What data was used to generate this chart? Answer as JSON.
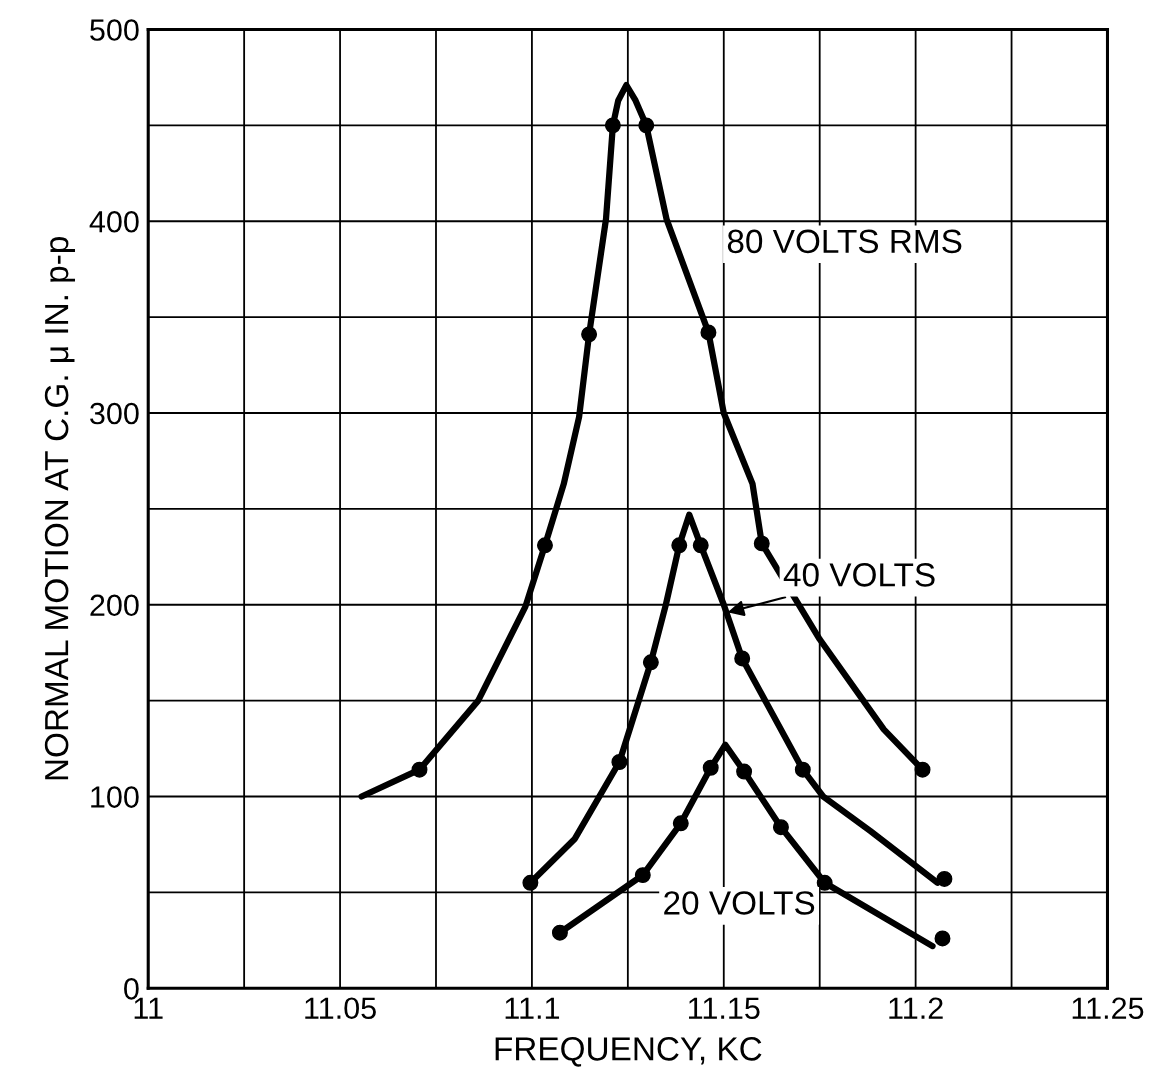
{
  "chart_data": {
    "type": "line",
    "xlabel": "FREQUENCY, KC",
    "ylabel": "NORMAL MOTION AT C.G. μ IN. p-p",
    "xlim": [
      11,
      11.25
    ],
    "ylim": [
      0,
      500
    ],
    "xticks": [
      11,
      {
        "value": 11.025,
        "label": null
      },
      11.05,
      {
        "value": 11.075,
        "label": null
      },
      11.1,
      {
        "value": 11.125,
        "label": null
      },
      11.15,
      {
        "value": 11.175,
        "label": null
      },
      11.2,
      {
        "value": 11.225,
        "label": null
      },
      11.25
    ],
    "yticks": [
      0,
      {
        "value": 50,
        "label": null
      },
      100,
      {
        "value": 150,
        "label": null
      },
      200,
      {
        "value": 250,
        "label": null
      },
      300,
      {
        "value": 350,
        "label": null
      },
      400,
      {
        "value": 450,
        "label": null
      },
      500
    ],
    "grid": true,
    "line_style": "solid",
    "series": [
      {
        "color": "#000000",
        "x": [
          11.0556,
          11.0707,
          11.086,
          11.0983,
          11.1034,
          11.1083,
          11.1123,
          11.1149,
          11.1193,
          11.1211,
          11.1225,
          11.1246,
          11.127,
          11.1298,
          11.1351,
          11.146,
          11.15,
          11.1575,
          11.1599,
          11.175,
          11.1917,
          11.2018
        ],
        "values": [
          100,
          114,
          150,
          199,
          231,
          263,
          298,
          341,
          401,
          450,
          463,
          471,
          463,
          450,
          401,
          342,
          300,
          263,
          232,
          182,
          135,
          114
        ]
      },
      {
        "type": "scatter",
        "color": "#000000",
        "marker": "circle",
        "x": [
          11.0707,
          11.1034,
          11.1149,
          11.1211,
          11.1298,
          11.146,
          11.1599,
          11.2018
        ],
        "values": [
          114,
          231,
          341,
          450,
          450,
          342,
          232,
          114
        ]
      },
      {
        "color": "#000000",
        "x": [
          11.0996,
          11.1112,
          11.1228,
          11.131,
          11.1349,
          11.1384,
          11.141,
          11.144,
          11.15,
          11.1548,
          11.1706,
          11.1759,
          11.1882,
          11.2057
        ],
        "values": [
          55,
          78,
          118,
          170,
          200,
          231,
          247,
          231,
          200,
          172,
          114,
          100,
          82,
          55
        ]
      },
      {
        "type": "scatter",
        "color": "#000000",
        "marker": "circle",
        "x": [
          11.0996,
          11.1228,
          11.131,
          11.1384,
          11.144,
          11.1548,
          11.1706,
          11.2075
        ],
        "values": [
          55,
          118,
          170,
          231,
          231,
          172,
          114,
          57
        ]
      },
      {
        "color": "#000000",
        "x": [
          11.1073,
          11.1289,
          11.1388,
          11.1466,
          11.1504,
          11.1553,
          11.1649,
          11.1763,
          11.2044
        ],
        "values": [
          29,
          59,
          86,
          115,
          127,
          113,
          84,
          55,
          22
        ]
      },
      {
        "type": "scatter",
        "color": "#000000",
        "marker": "circle",
        "x": [
          11.1073,
          11.1289,
          11.1388,
          11.1466,
          11.1553,
          11.1649,
          11.1763,
          11.207
        ],
        "values": [
          29,
          59,
          86,
          115,
          113,
          84,
          55,
          26
        ]
      }
    ],
    "annotations": [
      "80 VOLTS RMS",
      {
        "text": "40 VOLTS",
        "x": 11.151,
        "y": 196
      },
      "20 VOLTS"
    ]
  }
}
